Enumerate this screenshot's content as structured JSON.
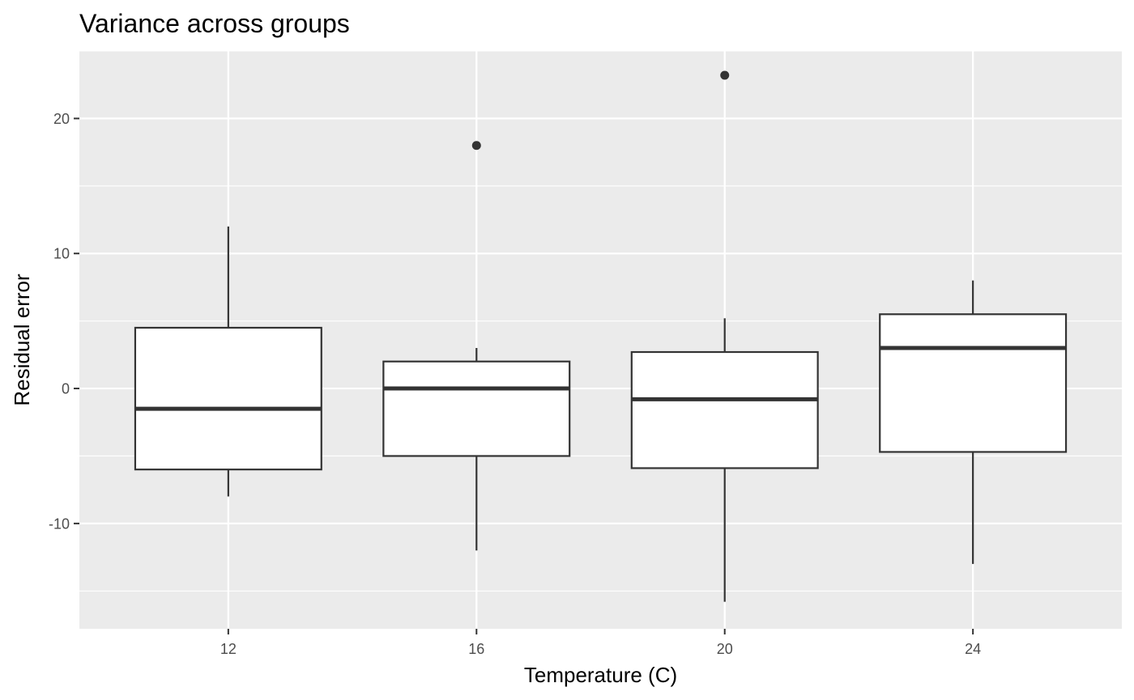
{
  "chart_data": {
    "type": "boxplot",
    "title": "Variance across groups",
    "xlabel": "Temperature (C)",
    "ylabel": "Residual error",
    "categories": [
      "12",
      "16",
      "20",
      "24"
    ],
    "boxes": [
      {
        "category": "12",
        "whisker_low": -8.0,
        "q1": -6.0,
        "median": -1.5,
        "q3": 4.5,
        "whisker_high": 12.0,
        "outliers": []
      },
      {
        "category": "16",
        "whisker_low": -12.0,
        "q1": -5.0,
        "median": 0.0,
        "q3": 2.0,
        "whisker_high": 3.0,
        "outliers": [
          18.0
        ]
      },
      {
        "category": "20",
        "whisker_low": -15.8,
        "q1": -5.9,
        "median": -0.8,
        "q3": 2.7,
        "whisker_high": 5.2,
        "outliers": [
          23.2
        ]
      },
      {
        "category": "24",
        "whisker_low": -13.0,
        "q1": -4.7,
        "median": 3.0,
        "q3": 5.5,
        "whisker_high": 8.0,
        "outliers": []
      }
    ],
    "y_ticks": [
      -10,
      0,
      10,
      20
    ],
    "y_tick_labels": [
      "-10",
      "0",
      "10",
      "20"
    ],
    "ylim": [
      -17.8,
      25.0
    ],
    "grid": true,
    "legend": "none",
    "colors": {
      "panel_background": "#ebebeb",
      "grid_major": "#ffffff",
      "box_fill": "#ffffff",
      "box_stroke": "#333333",
      "outlier": "#333333",
      "tick_text": "#4d4d4d",
      "tick_mark": "#333333"
    }
  }
}
